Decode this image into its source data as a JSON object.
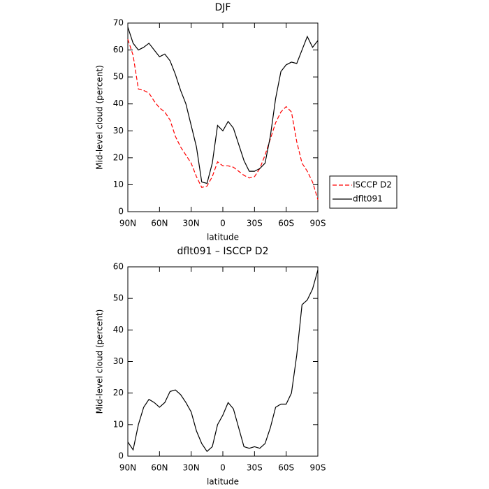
{
  "chart_data": [
    {
      "type": "line",
      "title": "DJF",
      "xlabel": "latitude",
      "ylabel": "Mid-level cloud (percent)",
      "x": [
        90,
        85,
        80,
        75,
        70,
        65,
        60,
        55,
        50,
        45,
        40,
        35,
        30,
        25,
        20,
        15,
        10,
        5,
        0,
        -5,
        -10,
        -15,
        -20,
        -25,
        -30,
        -35,
        -40,
        -45,
        -50,
        -55,
        -60,
        -65,
        -70,
        -75,
        -80,
        -85,
        -90
      ],
      "series": [
        {
          "name": "ISCCP D2",
          "color": "#ff0000",
          "dash": true,
          "values": [
            64,
            58,
            45.5,
            45,
            44,
            41,
            38.5,
            37,
            34,
            28,
            24,
            21,
            18,
            13,
            9,
            9.5,
            13,
            18.5,
            17,
            17,
            16.5,
            15,
            13.5,
            12.5,
            13,
            16,
            21,
            27,
            33,
            37,
            39,
            37,
            26,
            18,
            15,
            11,
            4.5
          ]
        },
        {
          "name": "dflt091",
          "color": "#000000",
          "dash": false,
          "values": [
            68.5,
            62.5,
            60,
            61,
            62.5,
            60,
            57.5,
            58.5,
            56,
            51,
            45,
            40,
            32,
            24,
            11,
            10.5,
            18,
            32,
            30,
            33.5,
            31,
            25,
            19,
            15,
            15,
            16,
            18,
            28,
            42,
            52,
            54.5,
            55.5,
            55,
            60,
            65,
            61,
            63.5
          ]
        }
      ],
      "xlim": [
        90,
        -90
      ],
      "xticks": [
        {
          "value": 90,
          "label": "90N"
        },
        {
          "value": 60,
          "label": "60N"
        },
        {
          "value": 30,
          "label": "30N"
        },
        0,
        {
          "value": -30,
          "label": "30S"
        },
        {
          "value": -60,
          "label": "60S"
        },
        {
          "value": -90,
          "label": "90S"
        }
      ],
      "ylim": [
        0,
        70
      ],
      "yticks": [
        0,
        10,
        20,
        30,
        40,
        50,
        60,
        70
      ],
      "legend": "outside right"
    },
    {
      "type": "line",
      "title": "dflt091 – ISCCP D2",
      "xlabel": "latitude",
      "ylabel": "Mid-level cloud (percent)",
      "x": [
        90,
        85,
        80,
        75,
        70,
        65,
        60,
        55,
        50,
        45,
        40,
        35,
        30,
        25,
        20,
        15,
        10,
        5,
        0,
        -5,
        -10,
        -15,
        -20,
        -25,
        -30,
        -35,
        -40,
        -45,
        -50,
        -55,
        -60,
        -65,
        -70,
        -75,
        -80,
        -85,
        -90
      ],
      "series": [
        {
          "color": "#000000",
          "dash": false,
          "values": [
            4.5,
            2,
            10,
            15.5,
            18,
            17,
            15.5,
            17,
            20.5,
            21,
            19.5,
            17,
            14,
            8,
            4,
            1.5,
            3,
            10,
            13,
            17,
            15,
            9,
            3,
            2.5,
            3,
            2.5,
            4,
            9,
            15.5,
            16.5,
            16.5,
            20,
            32,
            48,
            49.5,
            53,
            59
          ]
        }
      ],
      "xlim": [
        90,
        -90
      ],
      "xticks": [
        {
          "value": 90,
          "label": "90N"
        },
        {
          "value": 60,
          "label": "60N"
        },
        {
          "value": 30,
          "label": "30N"
        },
        0,
        {
          "value": -30,
          "label": "30S"
        },
        {
          "value": -60,
          "label": "60S"
        },
        {
          "value": -90,
          "label": "90S"
        }
      ],
      "ylim": [
        0,
        60
      ],
      "yticks": [
        0,
        10,
        20,
        30,
        40,
        50,
        60
      ]
    }
  ]
}
